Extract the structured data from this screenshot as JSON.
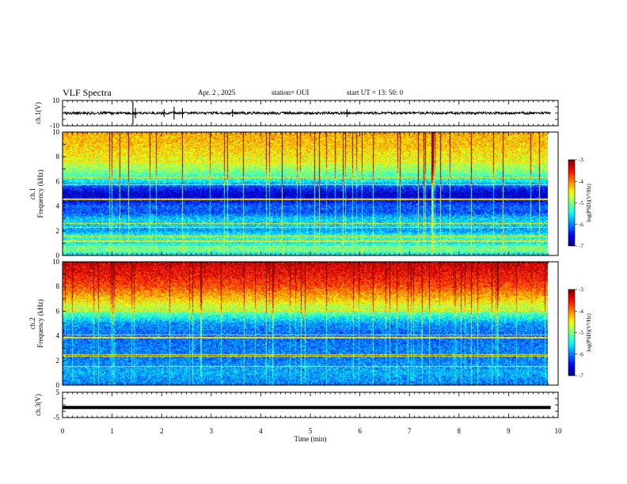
{
  "header": {
    "title": "VLF Spectra",
    "date": "Apr. 2 , 2025",
    "station": "station= OUI",
    "start": "start UT = 13: 50: 0"
  },
  "chart_data": [
    {
      "type": "line",
      "panel": "ch1-waveform",
      "ylabel": "ch.1(V)",
      "ylim": [
        -10,
        10
      ],
      "y_ticks": [
        "10",
        "-10"
      ],
      "x": [
        0,
        9.85
      ],
      "baseline": 0,
      "spikes_min": [
        0.0,
        1.42,
        1.47,
        2.05,
        2.25,
        2.42,
        3.43,
        5.74
      ],
      "spike_amplitudes": [
        1,
        9,
        4,
        3,
        5,
        4,
        3,
        3
      ]
    },
    {
      "type": "heatmap",
      "panel": "ch1-spectrogram",
      "ylabel": "ch.1\nFrequency (kHz)",
      "ylim": [
        0,
        10
      ],
      "y_ticks": [
        "0",
        "2",
        "4",
        "6",
        "8",
        "10"
      ],
      "xlim": [
        0,
        10
      ],
      "data_extent_min": 9.85,
      "colorbar": {
        "label": "log(PSD)(V²/Hz)",
        "range": [
          -7,
          -3
        ],
        "ticks": [
          "-3",
          "-4",
          "-5",
          "-6",
          "-7"
        ]
      },
      "bands_log": [
        [
          0.0,
          -5.6
        ],
        [
          0.5,
          -5.0
        ],
        [
          1.0,
          -5.5
        ],
        [
          1.5,
          -5.3
        ],
        [
          2.0,
          -5.9
        ],
        [
          2.5,
          -5.6
        ],
        [
          3.0,
          -5.7
        ],
        [
          3.5,
          -6.2
        ],
        [
          4.0,
          -6.1
        ],
        [
          4.5,
          -6.6
        ],
        [
          5.0,
          -6.7
        ],
        [
          5.5,
          -6.3
        ],
        [
          6.0,
          -5.5
        ],
        [
          7.0,
          -4.9
        ],
        [
          8.0,
          -4.5
        ],
        [
          9.0,
          -4.3
        ],
        [
          10.0,
          -4.2
        ]
      ]
    },
    {
      "type": "heatmap",
      "panel": "ch2-spectrogram",
      "ylabel": "ch.2\nFrequency (kHz)",
      "ylim": [
        0,
        10
      ],
      "y_ticks": [
        "0",
        "2",
        "4",
        "6",
        "8",
        "10"
      ],
      "xlim": [
        0,
        10
      ],
      "data_extent_min": 9.85,
      "colorbar": {
        "label": "log(PSD)(V²/Hz)",
        "range": [
          -7,
          -3
        ],
        "ticks": [
          "-3",
          "-4",
          "-5",
          "-6",
          "-7"
        ]
      },
      "bands_log": [
        [
          0.0,
          -6.0
        ],
        [
          1.0,
          -5.8
        ],
        [
          2.0,
          -6.0
        ],
        [
          3.0,
          -6.0
        ],
        [
          4.0,
          -6.1
        ],
        [
          5.0,
          -5.9
        ],
        [
          6.0,
          -5.0
        ],
        [
          7.0,
          -4.3
        ],
        [
          8.0,
          -3.8
        ],
        [
          9.0,
          -3.5
        ],
        [
          10.0,
          -3.3
        ]
      ]
    },
    {
      "type": "line",
      "panel": "ch3-waveform",
      "ylabel": "ch.3(V)",
      "ylim": [
        -5,
        5
      ],
      "y_ticks": [
        "5",
        "-5"
      ],
      "x": [
        0,
        9.85
      ],
      "y": [
        -1,
        -1
      ],
      "xlabel": "Time (min)",
      "x_ticks": [
        "0",
        "1",
        "2",
        "3",
        "4",
        "5",
        "6",
        "7",
        "8",
        "9",
        "10"
      ],
      "xlim": [
        0,
        10
      ]
    }
  ]
}
